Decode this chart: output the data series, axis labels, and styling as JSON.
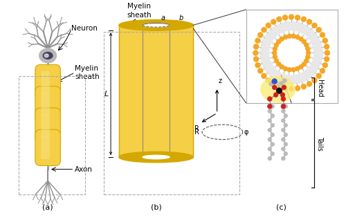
{
  "background_color": "#ffffff",
  "myelin_yellow": "#F5CF45",
  "myelin_yellow_light": "#FAE080",
  "myelin_yellow_dark": "#D4A800",
  "neuron_gray": "#B8B8B8",
  "neuron_gray_dark": "#909090",
  "label_a": "(a)",
  "label_b": "(b)",
  "label_c": "(c)",
  "text_neuron": "Neuron",
  "text_myelin": "Myelin\nsheath",
  "text_axon": "Axon",
  "text_head": "Head",
  "text_tails": "Tails",
  "text_L": "L",
  "text_a": "a",
  "text_b": "b",
  "text_z": "z",
  "text_R": "R",
  "text_phi": "φ",
  "lipid_orange": "#F5A623",
  "lipid_orange_dark": "#E08000",
  "lipid_tail": "#CCCCCC"
}
